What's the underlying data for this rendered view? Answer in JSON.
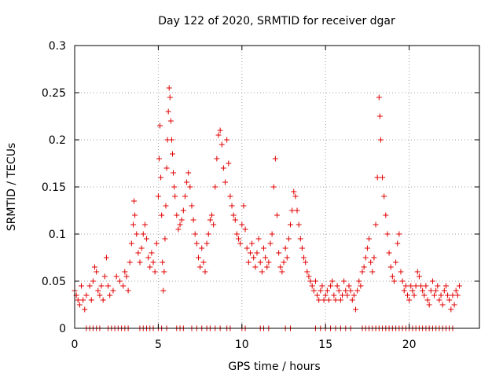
{
  "chart_data": {
    "type": "scatter",
    "title": "Day 122 of 2020, SRMTID for receiver dgar",
    "xlabel": "GPS time / hours",
    "ylabel": "SRMTID / TECUs",
    "xlim": [
      0,
      24.2
    ],
    "ylim": [
      0,
      0.3
    ],
    "xticks": [
      0,
      5,
      10,
      15,
      20
    ],
    "yticks": [
      0,
      0.05,
      0.1,
      0.15,
      0.2,
      0.25,
      0.3
    ],
    "xtick_labels": [
      "0",
      "5",
      "10",
      "15",
      "20"
    ],
    "ytick_labels": [
      "0",
      "0.05",
      "0.1",
      "0.15",
      "0.2",
      "0.25",
      "0.3"
    ],
    "grid": true,
    "marker": "+",
    "color": "#e00000",
    "series": [
      {
        "name": "SRMTID",
        "points": [
          [
            0.0,
            0.04
          ],
          [
            0.1,
            0.035
          ],
          [
            0.2,
            0.03
          ],
          [
            0.3,
            0.025
          ],
          [
            0.4,
            0.045
          ],
          [
            0.5,
            0.03
          ],
          [
            0.6,
            0.02
          ],
          [
            0.7,
            0.035
          ],
          [
            0.9,
            0.045
          ],
          [
            1.0,
            0.03
          ],
          [
            1.1,
            0.05
          ],
          [
            1.2,
            0.065
          ],
          [
            1.3,
            0.06
          ],
          [
            1.4,
            0.04
          ],
          [
            1.5,
            0.035
          ],
          [
            1.6,
            0.045
          ],
          [
            1.7,
            0.03
          ],
          [
            1.8,
            0.055
          ],
          [
            1.9,
            0.075
          ],
          [
            2.0,
            0.045
          ],
          [
            2.1,
            0.035
          ],
          [
            2.3,
            0.04
          ],
          [
            2.5,
            0.055
          ],
          [
            2.7,
            0.05
          ],
          [
            2.9,
            0.045
          ],
          [
            3.0,
            0.06
          ],
          [
            3.1,
            0.055
          ],
          [
            3.2,
            0.04
          ],
          [
            3.3,
            0.07
          ],
          [
            3.4,
            0.09
          ],
          [
            3.5,
            0.11
          ],
          [
            3.55,
            0.135
          ],
          [
            3.6,
            0.12
          ],
          [
            3.7,
            0.1
          ],
          [
            3.8,
            0.08
          ],
          [
            3.9,
            0.07
          ],
          [
            4.0,
            0.085
          ],
          [
            4.1,
            0.1
          ],
          [
            4.2,
            0.11
          ],
          [
            4.3,
            0.095
          ],
          [
            4.4,
            0.075
          ],
          [
            4.5,
            0.065
          ],
          [
            4.6,
            0.08
          ],
          [
            4.7,
            0.07
          ],
          [
            4.8,
            0.06
          ],
          [
            4.9,
            0.09
          ],
          [
            5.0,
            0.14
          ],
          [
            5.05,
            0.18
          ],
          [
            5.1,
            0.215
          ],
          [
            5.15,
            0.16
          ],
          [
            5.2,
            0.12
          ],
          [
            5.25,
            0.07
          ],
          [
            5.3,
            0.04
          ],
          [
            5.35,
            0.06
          ],
          [
            5.4,
            0.095
          ],
          [
            5.45,
            0.13
          ],
          [
            5.5,
            0.17
          ],
          [
            5.55,
            0.2
          ],
          [
            5.6,
            0.23
          ],
          [
            5.65,
            0.255
          ],
          [
            5.7,
            0.245
          ],
          [
            5.75,
            0.22
          ],
          [
            5.8,
            0.2
          ],
          [
            5.85,
            0.185
          ],
          [
            5.9,
            0.165
          ],
          [
            5.95,
            0.15
          ],
          [
            6.0,
            0.14
          ],
          [
            6.1,
            0.12
          ],
          [
            6.2,
            0.105
          ],
          [
            6.3,
            0.11
          ],
          [
            6.4,
            0.115
          ],
          [
            6.5,
            0.125
          ],
          [
            6.6,
            0.14
          ],
          [
            6.7,
            0.155
          ],
          [
            6.8,
            0.165
          ],
          [
            6.9,
            0.15
          ],
          [
            7.0,
            0.13
          ],
          [
            7.1,
            0.115
          ],
          [
            7.2,
            0.1
          ],
          [
            7.3,
            0.09
          ],
          [
            7.4,
            0.075
          ],
          [
            7.5,
            0.065
          ],
          [
            7.6,
            0.085
          ],
          [
            7.7,
            0.07
          ],
          [
            7.8,
            0.06
          ],
          [
            7.9,
            0.09
          ],
          [
            8.0,
            0.1
          ],
          [
            8.1,
            0.115
          ],
          [
            8.2,
            0.12
          ],
          [
            8.3,
            0.11
          ],
          [
            8.4,
            0.15
          ],
          [
            8.5,
            0.18
          ],
          [
            8.6,
            0.205
          ],
          [
            8.7,
            0.21
          ],
          [
            8.8,
            0.195
          ],
          [
            8.9,
            0.17
          ],
          [
            9.0,
            0.155
          ],
          [
            9.1,
            0.2
          ],
          [
            9.2,
            0.175
          ],
          [
            9.3,
            0.14
          ],
          [
            9.4,
            0.13
          ],
          [
            9.5,
            0.12
          ],
          [
            9.6,
            0.115
          ],
          [
            9.7,
            0.1
          ],
          [
            9.8,
            0.095
          ],
          [
            9.9,
            0.09
          ],
          [
            10.0,
            0.11
          ],
          [
            10.1,
            0.13
          ],
          [
            10.2,
            0.105
          ],
          [
            10.3,
            0.085
          ],
          [
            10.4,
            0.07
          ],
          [
            10.5,
            0.08
          ],
          [
            10.6,
            0.09
          ],
          [
            10.7,
            0.075
          ],
          [
            10.8,
            0.065
          ],
          [
            10.9,
            0.08
          ],
          [
            11.0,
            0.095
          ],
          [
            11.1,
            0.07
          ],
          [
            11.2,
            0.06
          ],
          [
            11.3,
            0.085
          ],
          [
            11.4,
            0.075
          ],
          [
            11.5,
            0.065
          ],
          [
            11.6,
            0.07
          ],
          [
            11.7,
            0.09
          ],
          [
            11.8,
            0.1
          ],
          [
            11.9,
            0.15
          ],
          [
            12.0,
            0.18
          ],
          [
            12.1,
            0.12
          ],
          [
            12.2,
            0.08
          ],
          [
            12.3,
            0.065
          ],
          [
            12.4,
            0.06
          ],
          [
            12.5,
            0.07
          ],
          [
            12.6,
            0.085
          ],
          [
            12.7,
            0.075
          ],
          [
            12.8,
            0.095
          ],
          [
            12.9,
            0.11
          ],
          [
            13.0,
            0.125
          ],
          [
            13.1,
            0.145
          ],
          [
            13.2,
            0.14
          ],
          [
            13.3,
            0.125
          ],
          [
            13.4,
            0.11
          ],
          [
            13.5,
            0.095
          ],
          [
            13.6,
            0.085
          ],
          [
            13.7,
            0.075
          ],
          [
            13.8,
            0.07
          ],
          [
            13.9,
            0.06
          ],
          [
            14.0,
            0.055
          ],
          [
            14.1,
            0.05
          ],
          [
            14.2,
            0.045
          ],
          [
            14.3,
            0.04
          ],
          [
            14.4,
            0.05
          ],
          [
            14.5,
            0.035
          ],
          [
            14.6,
            0.03
          ],
          [
            14.7,
            0.04
          ],
          [
            14.8,
            0.045
          ],
          [
            14.9,
            0.03
          ],
          [
            15.0,
            0.035
          ],
          [
            15.1,
            0.04
          ],
          [
            15.2,
            0.03
          ],
          [
            15.3,
            0.045
          ],
          [
            15.4,
            0.05
          ],
          [
            15.5,
            0.035
          ],
          [
            15.6,
            0.03
          ],
          [
            15.7,
            0.045
          ],
          [
            15.8,
            0.04
          ],
          [
            15.9,
            0.03
          ],
          [
            16.0,
            0.035
          ],
          [
            16.1,
            0.05
          ],
          [
            16.2,
            0.04
          ],
          [
            16.3,
            0.035
          ],
          [
            16.4,
            0.045
          ],
          [
            16.5,
            0.04
          ],
          [
            16.6,
            0.03
          ],
          [
            16.7,
            0.035
          ],
          [
            16.8,
            0.02
          ],
          [
            16.9,
            0.04
          ],
          [
            17.0,
            0.05
          ],
          [
            17.1,
            0.045
          ],
          [
            17.2,
            0.06
          ],
          [
            17.3,
            0.065
          ],
          [
            17.4,
            0.075
          ],
          [
            17.5,
            0.085
          ],
          [
            17.6,
            0.095
          ],
          [
            17.7,
            0.07
          ],
          [
            17.8,
            0.06
          ],
          [
            17.9,
            0.075
          ],
          [
            18.0,
            0.11
          ],
          [
            18.1,
            0.16
          ],
          [
            18.2,
            0.245
          ],
          [
            18.25,
            0.225
          ],
          [
            18.3,
            0.2
          ],
          [
            18.4,
            0.16
          ],
          [
            18.5,
            0.14
          ],
          [
            18.6,
            0.12
          ],
          [
            18.7,
            0.1
          ],
          [
            18.8,
            0.08
          ],
          [
            18.9,
            0.065
          ],
          [
            19.0,
            0.055
          ],
          [
            19.1,
            0.05
          ],
          [
            19.2,
            0.07
          ],
          [
            19.3,
            0.09
          ],
          [
            19.4,
            0.1
          ],
          [
            19.5,
            0.06
          ],
          [
            19.6,
            0.05
          ],
          [
            19.7,
            0.04
          ],
          [
            19.8,
            0.045
          ],
          [
            19.9,
            0.035
          ],
          [
            20.0,
            0.03
          ],
          [
            20.1,
            0.045
          ],
          [
            20.2,
            0.04
          ],
          [
            20.3,
            0.035
          ],
          [
            20.4,
            0.045
          ],
          [
            20.5,
            0.06
          ],
          [
            20.6,
            0.055
          ],
          [
            20.7,
            0.045
          ],
          [
            20.8,
            0.04
          ],
          [
            20.9,
            0.035
          ],
          [
            21.0,
            0.045
          ],
          [
            21.1,
            0.03
          ],
          [
            21.2,
            0.025
          ],
          [
            21.3,
            0.04
          ],
          [
            21.4,
            0.05
          ],
          [
            21.5,
            0.035
          ],
          [
            21.6,
            0.04
          ],
          [
            21.7,
            0.045
          ],
          [
            21.8,
            0.03
          ],
          [
            21.9,
            0.035
          ],
          [
            22.0,
            0.025
          ],
          [
            22.1,
            0.04
          ],
          [
            22.2,
            0.045
          ],
          [
            22.3,
            0.035
          ],
          [
            22.4,
            0.03
          ],
          [
            22.5,
            0.02
          ],
          [
            22.6,
            0.035
          ],
          [
            22.7,
            0.025
          ],
          [
            22.8,
            0.04
          ],
          [
            22.9,
            0.035
          ],
          [
            23.0,
            0.045
          ]
        ]
      }
    ],
    "zero_points_x": [
      0.7,
      0.9,
      1.1,
      1.3,
      1.5,
      2.0,
      2.2,
      2.4,
      2.6,
      2.8,
      3.0,
      3.2,
      3.9,
      4.1,
      4.3,
      4.5,
      4.7,
      5.0,
      5.2,
      5.5,
      6.1,
      6.3,
      6.5,
      7.0,
      7.3,
      7.6,
      7.9,
      8.1,
      8.4,
      8.7,
      9.1,
      9.3,
      10.0,
      10.2,
      11.1,
      11.3,
      11.6,
      12.6,
      12.9,
      14.4,
      14.7,
      15.0,
      15.3,
      15.6,
      15.9,
      16.2,
      16.5,
      17.2,
      17.4,
      17.6,
      17.8,
      18.0,
      18.2,
      18.4,
      18.6,
      18.8,
      19.0,
      19.2,
      19.4,
      19.6,
      19.8,
      20.0,
      20.2,
      20.4,
      20.6,
      20.8,
      21.0,
      21.2,
      21.4,
      21.6,
      21.8,
      22.0,
      22.2,
      22.4,
      22.6
    ]
  }
}
